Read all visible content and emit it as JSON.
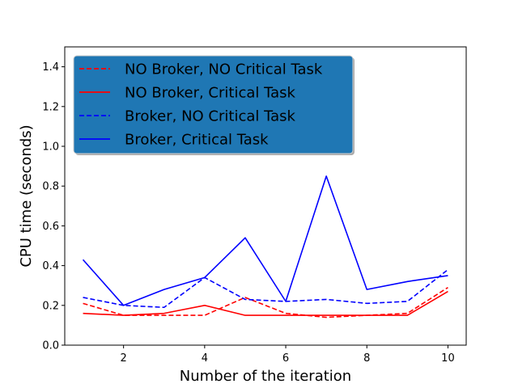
{
  "chart_data": {
    "type": "line",
    "title": "",
    "xlabel": "Number of the iteration",
    "ylabel": "CPU time (seconds)",
    "xlim": [
      0.55,
      10.45
    ],
    "ylim": [
      0,
      1.5
    ],
    "xticks": [
      2,
      4,
      6,
      8,
      10
    ],
    "yticks": [
      0.0,
      0.2,
      0.4,
      0.6,
      0.8,
      1.0,
      1.2,
      1.4
    ],
    "ytick_labels": [
      "0.0",
      "0.2",
      "0.4",
      "0.6",
      "0.8",
      "1.0",
      "1.2",
      "1.4"
    ],
    "grid": false,
    "legend_position": "top-left",
    "legend_background": "#1f77b4",
    "x": [
      1,
      2,
      3,
      4,
      5,
      6,
      7,
      8,
      9,
      10
    ],
    "series": [
      {
        "name": "NO Broker, NO Critical Task",
        "color": "#ff0000",
        "style": "dashed",
        "values": [
          0.21,
          0.15,
          0.15,
          0.15,
          0.24,
          0.16,
          0.14,
          0.15,
          0.16,
          0.29
        ]
      },
      {
        "name": "NO Broker, Critical Task",
        "color": "#ff0000",
        "style": "solid",
        "values": [
          0.16,
          0.15,
          0.16,
          0.2,
          0.15,
          0.15,
          0.15,
          0.15,
          0.15,
          0.27
        ]
      },
      {
        "name": "Broker, NO Critical Task",
        "color": "#0000ff",
        "style": "dashed",
        "values": [
          0.24,
          0.2,
          0.19,
          0.34,
          0.23,
          0.22,
          0.23,
          0.21,
          0.22,
          0.38
        ]
      },
      {
        "name": "Broker, Critical Task",
        "color": "#0000ff",
        "style": "solid",
        "values": [
          0.43,
          0.2,
          0.28,
          0.34,
          0.54,
          0.22,
          0.85,
          0.28,
          0.32,
          0.35
        ]
      }
    ]
  }
}
